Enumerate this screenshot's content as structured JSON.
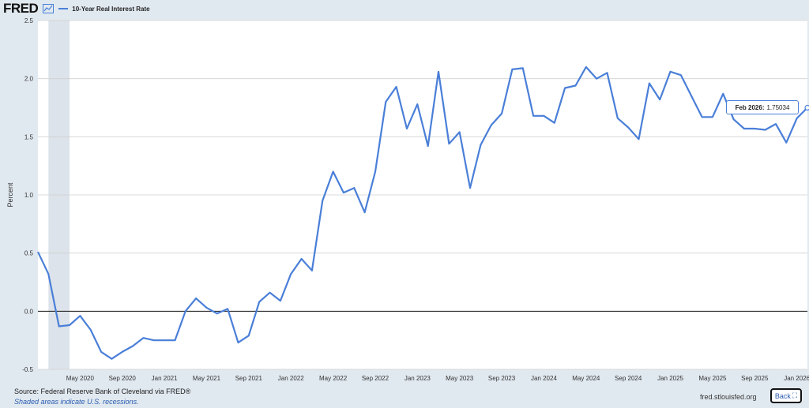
{
  "header": {
    "logo_text": "FRED",
    "logo_icon": "line-chart-icon",
    "legend_label": "10-Year Real Interest Rate"
  },
  "colors": {
    "series": "#4a7fd8",
    "recession": "#dce3ea",
    "background": "#e1e9f0"
  },
  "tooltip": {
    "date": "Feb 2026:",
    "value": "1.75034"
  },
  "footer": {
    "source": "Source: Federal Reserve Bank of Cleveland via FRED®",
    "note": "Shaded areas indicate U.S. recessions.",
    "site": "fred.stlouisfed.org",
    "back_label": "Back"
  },
  "chart_data": {
    "type": "line",
    "ylabel": "Percent",
    "ylim": [
      -0.5,
      2.5
    ],
    "yticks": [
      -0.5,
      0.0,
      0.5,
      1.0,
      1.5,
      2.0,
      2.5
    ],
    "xtick_labels": [
      "May 2020",
      "Sep 2020",
      "Jan 2021",
      "May 2021",
      "Sep 2021",
      "Jan 2022",
      "May 2022",
      "Sep 2022",
      "Jan 2023",
      "May 2023",
      "Sep 2023",
      "Jan 2024",
      "May 2024",
      "Sep 2024",
      "Jan 2025",
      "May 2025",
      "Sep 2025",
      "Jan 2026"
    ],
    "x_start": "2020-01",
    "recession": {
      "start": "2020-02",
      "end": "2020-04"
    },
    "series": [
      {
        "values": [
          0.51,
          0.32,
          -0.13,
          -0.12,
          -0.04,
          -0.16,
          -0.35,
          -0.41,
          -0.35,
          -0.3,
          -0.23,
          -0.25,
          -0.25,
          -0.25,
          0.0,
          0.11,
          0.03,
          -0.02,
          0.02,
          -0.27,
          -0.21,
          0.08,
          0.16,
          0.09,
          0.32,
          0.45,
          0.35,
          0.95,
          1.2,
          1.02,
          1.06,
          0.85,
          1.2,
          1.8,
          1.93,
          1.57,
          1.78,
          1.42,
          2.06,
          1.44,
          1.54,
          1.06,
          1.43,
          1.6,
          1.7,
          2.08,
          2.09,
          1.68,
          1.68,
          1.62,
          1.92,
          1.94,
          2.1,
          2.0,
          2.05,
          1.66,
          1.58,
          1.48,
          1.96,
          1.82,
          2.06,
          2.03,
          1.85,
          1.67,
          1.67,
          1.87,
          1.65,
          1.57,
          1.57,
          1.56,
          1.61,
          1.45,
          1.66,
          1.75
        ]
      }
    ]
  }
}
